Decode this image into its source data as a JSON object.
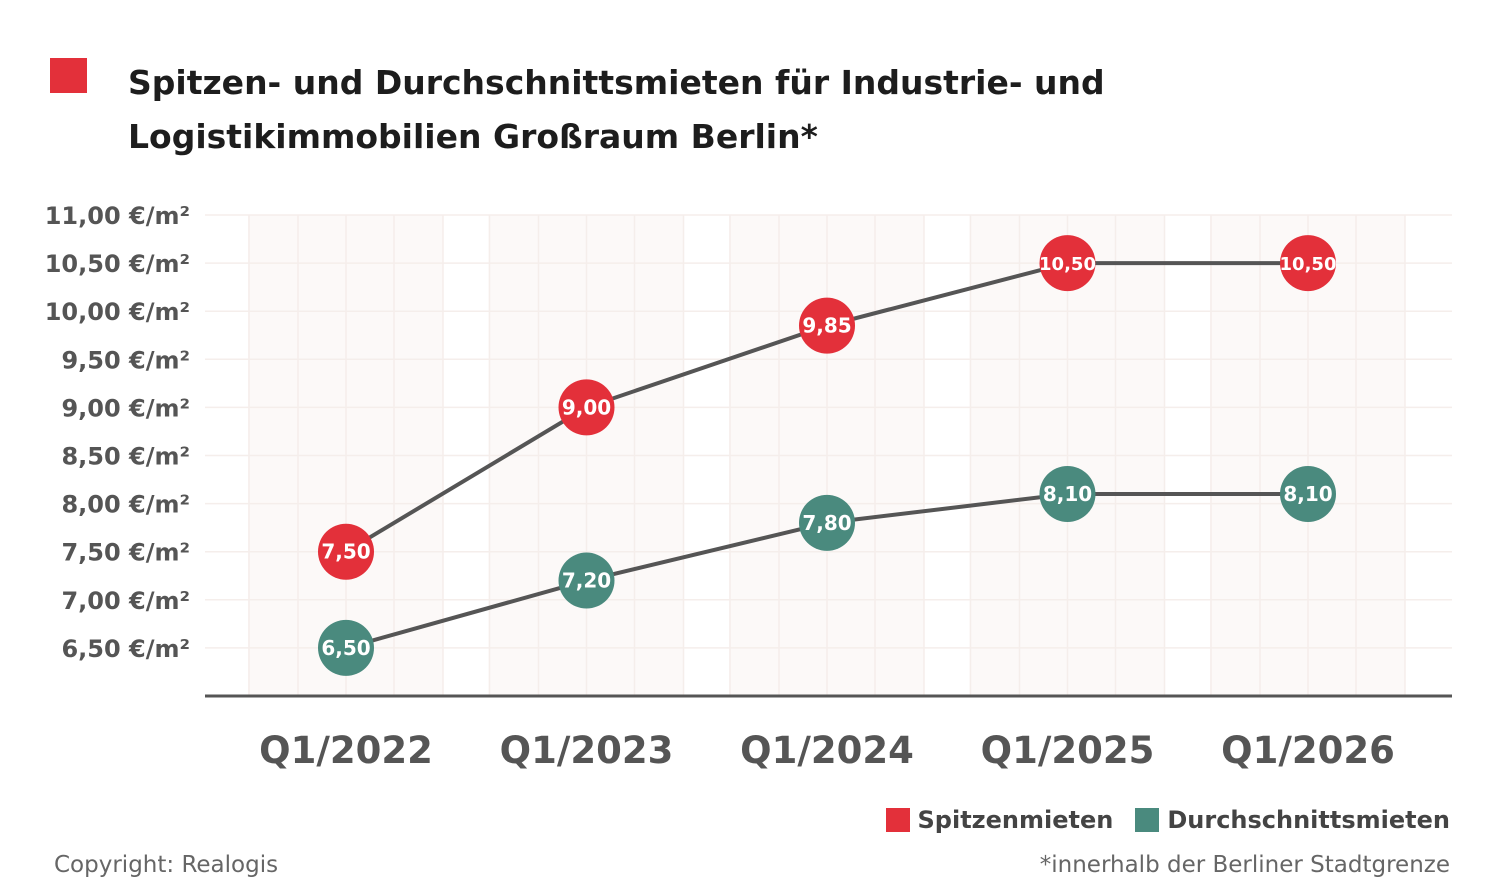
{
  "title": "Spitzen- und Durchschnittsmieten für Industrie- und Logistikimmobilien Großraum Berlin*",
  "footer_left": "Copyright: Realogis",
  "footer_right": "*innerhalb der Berliner Stadtgrenze",
  "colors": {
    "accent": "#e3303a",
    "spitzen": "#e3303a",
    "durchschnitt": "#4a8a7e",
    "line": "#555555",
    "axis": "#555555"
  },
  "chart_data": {
    "type": "line",
    "title": "Spitzen- und Durchschnittsmieten für Industrie- und Logistikimmobilien Großraum Berlin*",
    "categories": [
      "Q1/2022",
      "Q1/2023",
      "Q1/2024",
      "Q1/2025",
      "Q1/2026"
    ],
    "ylim": [
      6.0,
      11.0
    ],
    "yticks": [
      6.5,
      7.0,
      7.5,
      8.0,
      8.5,
      9.0,
      9.5,
      10.0,
      10.5,
      11.0
    ],
    "ytick_labels": [
      "6,50 €/m²",
      "7,00 €/m²",
      "7,50 €/m²",
      "8,00 €/m²",
      "8,50 €/m²",
      "9,00 €/m²",
      "9,50 €/m²",
      "10,00 €/m²",
      "10,50 €/m²",
      "11,00 €/m²"
    ],
    "grid": true,
    "legend_position": "bottom-right",
    "series": [
      {
        "name": "Spitzenmieten",
        "color": "#e3303a",
        "values": [
          7.5,
          9.0,
          9.85,
          10.5,
          10.5
        ],
        "labels": [
          "7,50",
          "9,00",
          "9,85",
          "10,50",
          "10,50"
        ]
      },
      {
        "name": "Durchschnittsmieten",
        "color": "#4a8a7e",
        "values": [
          6.5,
          7.2,
          7.8,
          8.1,
          8.1
        ],
        "labels": [
          "6,50",
          "7,20",
          "7,80",
          "8,10",
          "8,10"
        ]
      }
    ]
  }
}
